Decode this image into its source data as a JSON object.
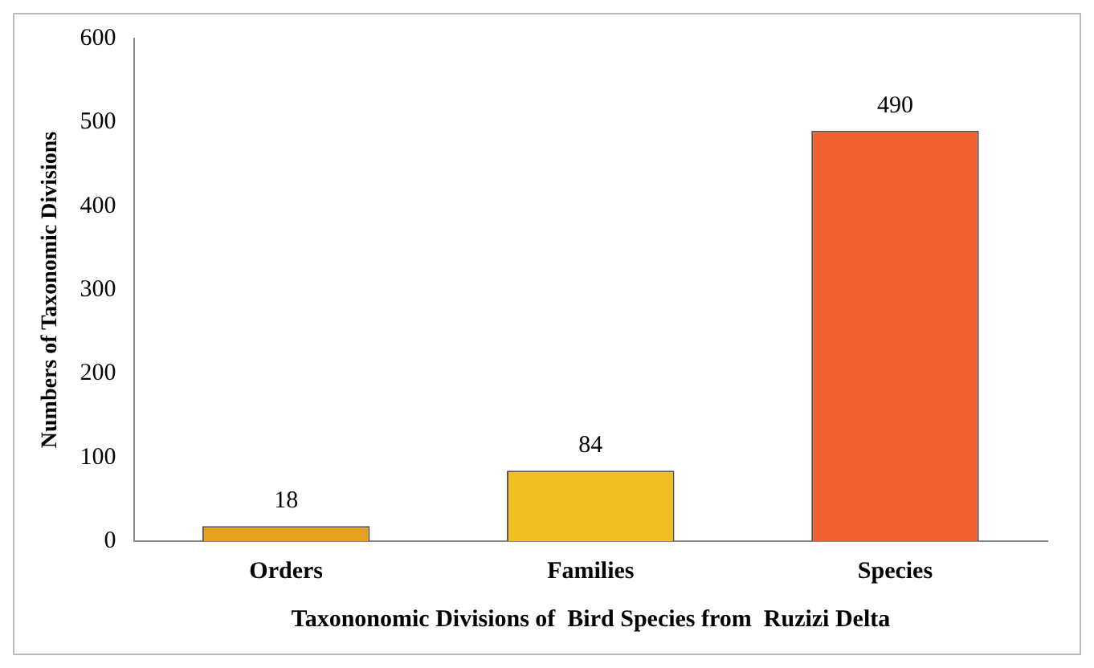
{
  "chart_data": {
    "type": "bar",
    "categories": [
      "Orders",
      "Families",
      "Species"
    ],
    "values": [
      18,
      84,
      490
    ],
    "colors": [
      "#e8a020",
      "#f0c020",
      "#f06030"
    ],
    "xlabel": "Taxononomic Divisions of  Bird Species from  Ruzizi Delta",
    "ylabel": "Numbers of Taxonomic Divisions",
    "ylim": [
      0,
      600
    ],
    "yticks": [
      0,
      100,
      200,
      300,
      400,
      500,
      600
    ],
    "grid": false,
    "legend": false,
    "data_labels": true
  }
}
